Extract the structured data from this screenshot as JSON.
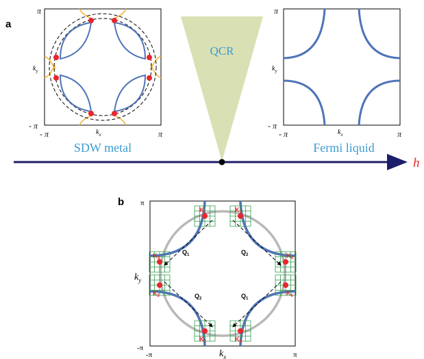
{
  "panel_a": {
    "label": "a",
    "left_plot": {
      "tick_pi_top": "π",
      "tick_neg_pi_left": "- π",
      "tick_neg_pi_bottom": "- π",
      "tick_pi_right": "π",
      "axis_kx": "k",
      "axis_kx_sub": "x",
      "axis_ky": "k",
      "axis_ky_sub": "y",
      "caption": "SDW metal"
    },
    "center": {
      "label": "QCR"
    },
    "right_plot": {
      "tick_pi_top": "π",
      "tick_neg_pi_left": "- π",
      "tick_neg_pi_bottom": "- π",
      "tick_pi_right": "π",
      "axis_kx": "k",
      "axis_kx_sub": "x",
      "axis_ky": "k",
      "axis_ky_sub": "y",
      "caption": "Fermi liquid"
    },
    "axis_label": "h"
  },
  "panel_b": {
    "label": "b",
    "tick_pi_top": "π",
    "tick_neg_pi_left": "-π",
    "tick_neg_pi_bottom": "-π",
    "tick_pi_right": "π",
    "axis_kx": "k",
    "axis_kx_sub": "x",
    "axis_ky": "k",
    "axis_ky_sub": "y",
    "q_labels": [
      {
        "t": "Q",
        "s": "1"
      },
      {
        "t": "Q",
        "s": "2"
      },
      {
        "t": "Q",
        "s": "1"
      },
      {
        "t": "Q",
        "s": "2"
      }
    ],
    "hotspot_labels": [
      {
        "t": "K",
        "s": "1"
      },
      {
        "t": "K",
        "s": "2"
      },
      {
        "t": "K",
        "s": "3"
      },
      {
        "t": "K",
        "s": "4"
      },
      {
        "t": "K",
        "s": "5"
      },
      {
        "t": "K",
        "s": "6"
      },
      {
        "t": "K",
        "s": "7"
      },
      {
        "t": "K",
        "s": "8"
      }
    ]
  },
  "colors": {
    "fermi_blue": "#4f74b8",
    "hot_red": "#e8262b",
    "axis_navy": "#1c1e6b",
    "label_blue": "#3a9bd2",
    "cone": "#d8e0b4",
    "orange": "#f4b63c",
    "grid_green": "#2d9a4a",
    "gray": "#b8b8b8",
    "h_red": "#e8262b"
  }
}
